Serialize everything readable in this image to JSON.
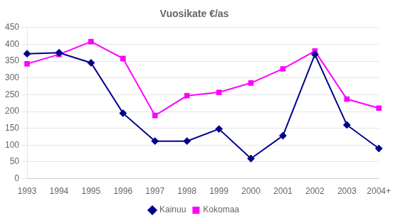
{
  "chart_data": {
    "type": "line",
    "title": "Vuosikate €/as",
    "categories": [
      "1993",
      "1994",
      "1995",
      "1996",
      "1997",
      "1998",
      "1999",
      "2000",
      "2001",
      "2002",
      "2003",
      "2004+"
    ],
    "series": [
      {
        "name": "Kainuu",
        "color": "#00008B",
        "marker": "diamond",
        "values": [
          372,
          375,
          345,
          195,
          112,
          112,
          148,
          60,
          128,
          370,
          160,
          90
        ]
      },
      {
        "name": "Kokomaa",
        "color": "#FF00FF",
        "marker": "square",
        "values": [
          342,
          370,
          408,
          358,
          188,
          247,
          257,
          285,
          327,
          380,
          237,
          210
        ]
      }
    ],
    "ylim": [
      0,
      450
    ],
    "yticks": [
      0,
      50,
      100,
      150,
      200,
      250,
      300,
      350,
      400,
      450
    ],
    "grid": true,
    "legend": "bottom"
  }
}
